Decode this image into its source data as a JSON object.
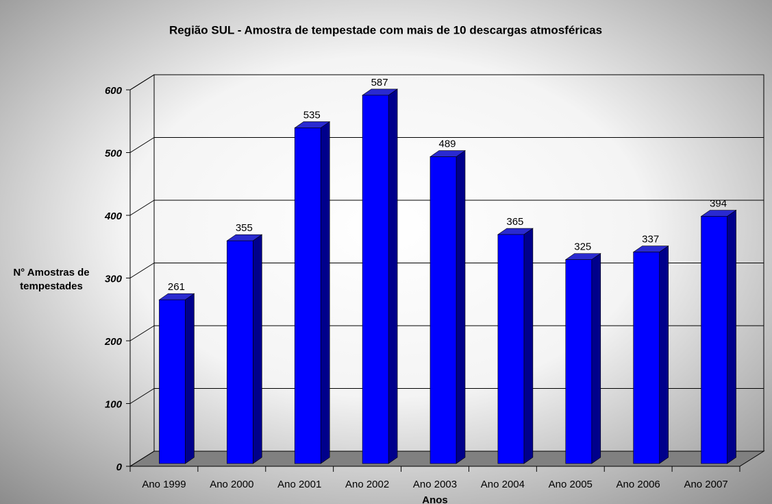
{
  "chart_data": {
    "type": "bar3d",
    "title": "Região SUL - Amostra de tempestade com mais de 10 descargas atmosféricas",
    "ylabel": [
      "N° Amostras de",
      "tempestades"
    ],
    "xlabel": "Anos",
    "categories": [
      "Ano 1999",
      "Ano 2000",
      "Ano 2001",
      "Ano 2002",
      "Ano 2003",
      "Ano 2004",
      "Ano 2005",
      "Ano 2006",
      "Ano 2007"
    ],
    "values": [
      261,
      355,
      535,
      587,
      489,
      365,
      325,
      337,
      394
    ],
    "color": "#0000ff",
    "ylim": [
      0,
      600
    ],
    "yticks": [
      0,
      100,
      200,
      300,
      400,
      500,
      600
    ],
    "grid": true
  }
}
